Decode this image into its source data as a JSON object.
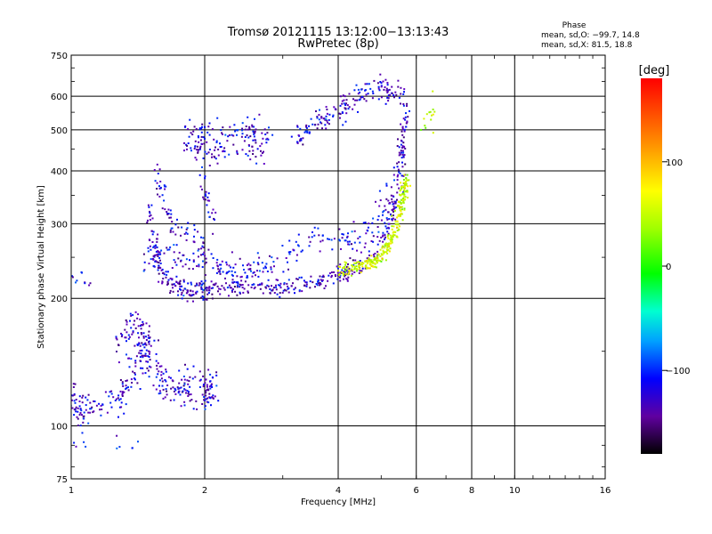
{
  "chart_data": {
    "type": "scatter",
    "title": "Tromsø 20121115 13:12:00−13:13:43",
    "subtitle": "RwPretec (8p)",
    "xlabel": "Frequency [MHz]",
    "ylabel": "Stationary phase Virtual Height [km]",
    "x_scale": "log",
    "y_scale": "log",
    "xlim": [
      1,
      16
    ],
    "ylim": [
      75,
      750
    ],
    "x_ticks": [
      1,
      2,
      4,
      6,
      8,
      10,
      16
    ],
    "x_tick_labels": [
      "1",
      "2",
      "4",
      "6",
      "8",
      "10",
      "16"
    ],
    "y_ticks": [
      75,
      100,
      200,
      300,
      400,
      500,
      600,
      750
    ],
    "y_tick_labels": [
      "75",
      "100",
      "200",
      "300",
      "400",
      "500",
      "600",
      "750"
    ],
    "grid": true,
    "phase_info": {
      "title": "Phase",
      "line_o": "mean, sd,O: −99.7, 14.8",
      "line_x": "mean, sd,X:  81.5, 18.8"
    },
    "colorbar": {
      "label": "[deg]",
      "range": [
        -180,
        180
      ],
      "ticks": [
        100,
        0,
        -100
      ],
      "tick_labels": [
        "100",
        "0",
        "−100"
      ]
    },
    "traces": [
      {
        "x": [
          1.0,
          1.02,
          1.05,
          1.1,
          1.2,
          1.3,
          1.35,
          1.4,
          1.45,
          1.5,
          1.55,
          1.6,
          1.7,
          1.8,
          1.9,
          2.0,
          2.05,
          2.1
        ],
        "y": [
          118,
          112,
          108,
          110,
          114,
          118,
          130,
          140,
          150,
          145,
          138,
          125,
          122,
          124,
          120,
          118,
          122,
          124
        ],
        "phase": -110,
        "spread_x": 0.02,
        "spread_y": 0.05,
        "count": 330
      },
      {
        "x": [
          1.25,
          1.3,
          1.35,
          1.4,
          1.45,
          1.5
        ],
        "y": [
          150,
          160,
          170,
          180,
          165,
          160
        ],
        "phase": -115,
        "spread_x": 0.01,
        "spread_y": 0.04,
        "count": 60
      },
      {
        "x": [
          1.5,
          1.55,
          1.6,
          1.7,
          1.8,
          1.9,
          2.0,
          2.1,
          2.3,
          2.5,
          2.8,
          3.0,
          3.3,
          3.6,
          3.9,
          4.2,
          4.6,
          5.0,
          5.3,
          5.5,
          5.6,
          5.7
        ],
        "y": [
          330,
          250,
          225,
          215,
          210,
          208,
          208,
          210,
          212,
          212,
          213,
          214,
          216,
          220,
          225,
          232,
          245,
          270,
          320,
          390,
          480,
          560
        ],
        "phase": -115,
        "spread_x": 0.012,
        "spread_y": 0.025,
        "count": 500
      },
      {
        "x": [
          1.45,
          1.55,
          1.7,
          1.9,
          2.1,
          2.3,
          2.5,
          2.8,
          3.2,
          3.6,
          4.0,
          4.4,
          4.8,
          5.1,
          5.3
        ],
        "y": [
          240,
          265,
          255,
          245,
          240,
          232,
          228,
          240,
          262,
          275,
          280,
          275,
          290,
          320,
          360
        ],
        "phase": -105,
        "spread_x": 0.02,
        "spread_y": 0.04,
        "count": 260
      },
      {
        "x": [
          1.55,
          1.6,
          1.65,
          1.7,
          1.8,
          1.9,
          2.0
        ],
        "y": [
          400,
          360,
          320,
          290,
          280,
          270,
          260
        ],
        "phase": -112,
        "spread_x": 0.01,
        "spread_y": 0.04,
        "count": 70
      },
      {
        "x": [
          1.8,
          2.0,
          2.2,
          2.5,
          2.8
        ],
        "y": [
          470,
          490,
          480,
          500,
          490
        ],
        "phase": -108,
        "spread_x": 0.015,
        "spread_y": 0.04,
        "count": 110
      },
      {
        "x": [
          1.9,
          2.05,
          2.2,
          2.5,
          2.8
        ],
        "y": [
          440,
          430,
          440,
          450,
          440
        ],
        "phase": -112,
        "spread_x": 0.015,
        "spread_y": 0.03,
        "count": 60
      },
      {
        "x": [
          3.2,
          3.4,
          3.6,
          3.8,
          4.0,
          4.2,
          4.5,
          4.8,
          5.1,
          5.4,
          5.6
        ],
        "y": [
          480,
          500,
          520,
          540,
          560,
          580,
          600,
          610,
          620,
          610,
          600
        ],
        "phase": -110,
        "spread_x": 0.015,
        "spread_y": 0.035,
        "count": 170
      },
      {
        "x": [
          4.0,
          4.3,
          4.6,
          4.9,
          5.1,
          5.3,
          5.5,
          5.6,
          5.7
        ],
        "y": [
          232,
          235,
          240,
          248,
          260,
          280,
          310,
          350,
          380
        ],
        "phase": 95,
        "spread_x": 0.01,
        "spread_y": 0.02,
        "count": 280
      },
      {
        "x": [
          1.95,
          2.0,
          2.05,
          2.1
        ],
        "y": [
          380,
          350,
          320,
          300
        ],
        "phase": -110,
        "spread_x": 0.01,
        "spread_y": 0.04,
        "count": 25
      },
      {
        "x": [
          1.0,
          1.05,
          1.1
        ],
        "y": [
          225,
          222,
          218
        ],
        "phase": -110,
        "spread_x": 0.01,
        "spread_y": 0.02,
        "count": 10
      },
      {
        "x": [
          1.0,
          1.05,
          1.25,
          1.4
        ],
        "y": [
          93,
          90,
          92,
          90
        ],
        "phase": -100,
        "spread_x": 0.01,
        "spread_y": 0.02,
        "count": 12
      },
      {
        "x": [
          6.2,
          6.4,
          6.5,
          6.6
        ],
        "y": [
          470,
          520,
          560,
          590
        ],
        "phase": 90,
        "spread_x": 0.01,
        "spread_y": 0.04,
        "count": 14
      }
    ]
  }
}
